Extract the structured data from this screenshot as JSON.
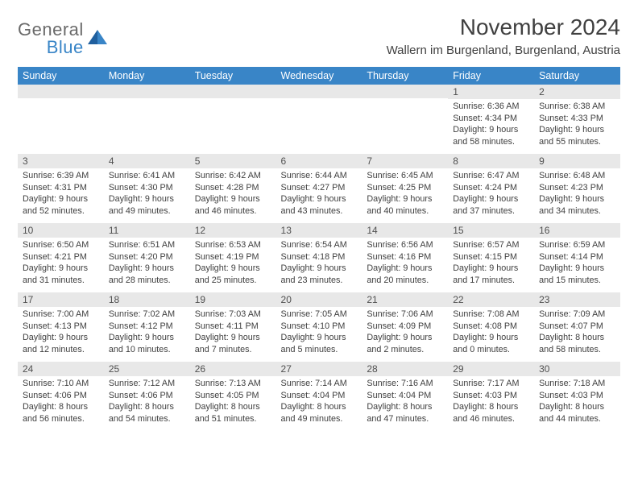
{
  "logo": {
    "line1": "General",
    "line2": "Blue"
  },
  "title": "November 2024",
  "location": "Wallern im Burgenland, Burgenland, Austria",
  "colors": {
    "header_bg": "#3985c7",
    "header_text": "#ffffff",
    "daynum_bg": "#e8e8e8",
    "text": "#404040",
    "logo_gray": "#6a6a6a",
    "logo_blue": "#3985c7"
  },
  "dayNames": [
    "Sunday",
    "Monday",
    "Tuesday",
    "Wednesday",
    "Thursday",
    "Friday",
    "Saturday"
  ],
  "weeks": [
    [
      null,
      null,
      null,
      null,
      null,
      {
        "n": 1,
        "sr": "6:36 AM",
        "ss": "4:34 PM",
        "dl": "9 hours and 58 minutes."
      },
      {
        "n": 2,
        "sr": "6:38 AM",
        "ss": "4:33 PM",
        "dl": "9 hours and 55 minutes."
      }
    ],
    [
      {
        "n": 3,
        "sr": "6:39 AM",
        "ss": "4:31 PM",
        "dl": "9 hours and 52 minutes."
      },
      {
        "n": 4,
        "sr": "6:41 AM",
        "ss": "4:30 PM",
        "dl": "9 hours and 49 minutes."
      },
      {
        "n": 5,
        "sr": "6:42 AM",
        "ss": "4:28 PM",
        "dl": "9 hours and 46 minutes."
      },
      {
        "n": 6,
        "sr": "6:44 AM",
        "ss": "4:27 PM",
        "dl": "9 hours and 43 minutes."
      },
      {
        "n": 7,
        "sr": "6:45 AM",
        "ss": "4:25 PM",
        "dl": "9 hours and 40 minutes."
      },
      {
        "n": 8,
        "sr": "6:47 AM",
        "ss": "4:24 PM",
        "dl": "9 hours and 37 minutes."
      },
      {
        "n": 9,
        "sr": "6:48 AM",
        "ss": "4:23 PM",
        "dl": "9 hours and 34 minutes."
      }
    ],
    [
      {
        "n": 10,
        "sr": "6:50 AM",
        "ss": "4:21 PM",
        "dl": "9 hours and 31 minutes."
      },
      {
        "n": 11,
        "sr": "6:51 AM",
        "ss": "4:20 PM",
        "dl": "9 hours and 28 minutes."
      },
      {
        "n": 12,
        "sr": "6:53 AM",
        "ss": "4:19 PM",
        "dl": "9 hours and 25 minutes."
      },
      {
        "n": 13,
        "sr": "6:54 AM",
        "ss": "4:18 PM",
        "dl": "9 hours and 23 minutes."
      },
      {
        "n": 14,
        "sr": "6:56 AM",
        "ss": "4:16 PM",
        "dl": "9 hours and 20 minutes."
      },
      {
        "n": 15,
        "sr": "6:57 AM",
        "ss": "4:15 PM",
        "dl": "9 hours and 17 minutes."
      },
      {
        "n": 16,
        "sr": "6:59 AM",
        "ss": "4:14 PM",
        "dl": "9 hours and 15 minutes."
      }
    ],
    [
      {
        "n": 17,
        "sr": "7:00 AM",
        "ss": "4:13 PM",
        "dl": "9 hours and 12 minutes."
      },
      {
        "n": 18,
        "sr": "7:02 AM",
        "ss": "4:12 PM",
        "dl": "9 hours and 10 minutes."
      },
      {
        "n": 19,
        "sr": "7:03 AM",
        "ss": "4:11 PM",
        "dl": "9 hours and 7 minutes."
      },
      {
        "n": 20,
        "sr": "7:05 AM",
        "ss": "4:10 PM",
        "dl": "9 hours and 5 minutes."
      },
      {
        "n": 21,
        "sr": "7:06 AM",
        "ss": "4:09 PM",
        "dl": "9 hours and 2 minutes."
      },
      {
        "n": 22,
        "sr": "7:08 AM",
        "ss": "4:08 PM",
        "dl": "9 hours and 0 minutes."
      },
      {
        "n": 23,
        "sr": "7:09 AM",
        "ss": "4:07 PM",
        "dl": "8 hours and 58 minutes."
      }
    ],
    [
      {
        "n": 24,
        "sr": "7:10 AM",
        "ss": "4:06 PM",
        "dl": "8 hours and 56 minutes."
      },
      {
        "n": 25,
        "sr": "7:12 AM",
        "ss": "4:06 PM",
        "dl": "8 hours and 54 minutes."
      },
      {
        "n": 26,
        "sr": "7:13 AM",
        "ss": "4:05 PM",
        "dl": "8 hours and 51 minutes."
      },
      {
        "n": 27,
        "sr": "7:14 AM",
        "ss": "4:04 PM",
        "dl": "8 hours and 49 minutes."
      },
      {
        "n": 28,
        "sr": "7:16 AM",
        "ss": "4:04 PM",
        "dl": "8 hours and 47 minutes."
      },
      {
        "n": 29,
        "sr": "7:17 AM",
        "ss": "4:03 PM",
        "dl": "8 hours and 46 minutes."
      },
      {
        "n": 30,
        "sr": "7:18 AM",
        "ss": "4:03 PM",
        "dl": "8 hours and 44 minutes."
      }
    ]
  ],
  "labels": {
    "sunrise": "Sunrise:",
    "sunset": "Sunset:",
    "daylight": "Daylight:"
  }
}
